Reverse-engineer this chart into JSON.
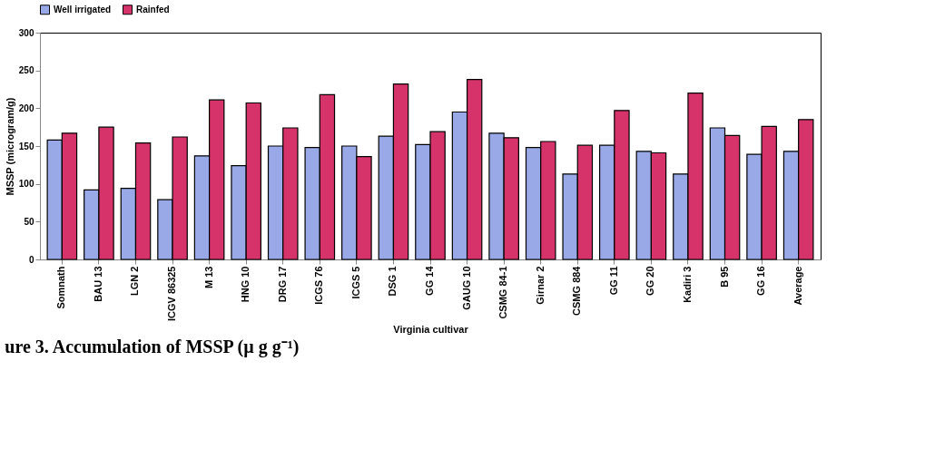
{
  "chart_data": {
    "type": "bar",
    "xlabel": "Virginia cultivar",
    "ylabel": "MSSP (microgram/g)",
    "categories": [
      "Somnath",
      "BAU 13",
      "LGN 2",
      "ICGV 86325",
      "M 13",
      "HNG 10",
      "DRG 17",
      "ICGS 76",
      "ICGS 5",
      "DSG 1",
      "GG 14",
      "GAUG 10",
      "CSMG 84-1",
      "Girnar 2",
      "CSMG 884",
      "GG 11",
      "GG 20",
      "Kadiri 3",
      "B 95",
      "GG 16",
      "Average"
    ],
    "series": [
      {
        "name": "Well irrigated",
        "color": "#99a8e6",
        "values": [
          158,
          92,
          94,
          79,
          137,
          124,
          150,
          148,
          150,
          163,
          152,
          195,
          167,
          148,
          113,
          151,
          143,
          113,
          174,
          139,
          143
        ]
      },
      {
        "name": "Rainfed",
        "color": "#d6336b",
        "values": [
          167,
          175,
          154,
          162,
          211,
          207,
          174,
          218,
          136,
          232,
          169,
          238,
          161,
          156,
          151,
          197,
          141,
          220,
          164,
          176,
          185
        ]
      }
    ],
    "ylim": [
      0,
      300
    ],
    "yticks": [
      0,
      50,
      100,
      150,
      200,
      250,
      300
    ],
    "grid": false,
    "legend": "top",
    "annotations": [
      "ure 3. Accumulation of MSSP (µ g g⁻¹)"
    ]
  }
}
